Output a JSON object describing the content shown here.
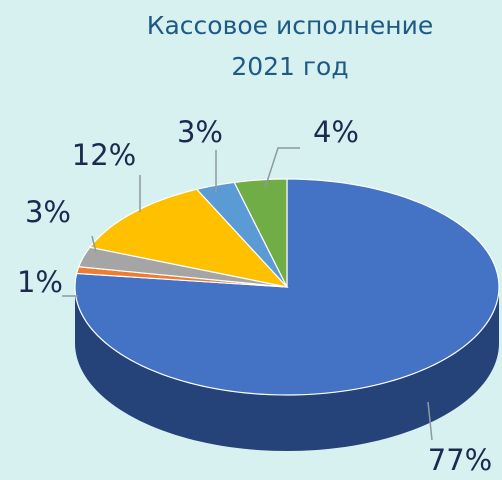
{
  "chart_data": {
    "type": "pie",
    "title": [
      "Кассовое исполнение",
      "2021 год"
    ],
    "values": [
      77,
      1,
      3,
      12,
      3,
      4
    ],
    "value_labels": [
      "77%",
      "1%",
      "3%",
      "12%",
      "3%",
      "4%"
    ],
    "colors": [
      "#4472c4",
      "#ed7d31",
      "#a5a5a5",
      "#ffc000",
      "#5b9bd5",
      "#70ad47"
    ]
  }
}
